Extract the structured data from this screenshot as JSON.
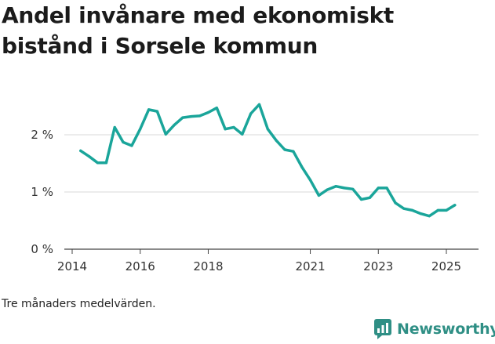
{
  "title": "Andel invånare med ekonomiskt bistånd i Sorsele kommun",
  "caption": "Tre månaders medelvärden.",
  "brand": {
    "name": "Newsworthy",
    "icon": "newsworthy-logo-icon",
    "color": "#2f8f85"
  },
  "chart_data": {
    "type": "line",
    "title": "Andel invånare med ekonomiskt bistånd i Sorsele kommun",
    "xlabel": "",
    "ylabel": "",
    "x_ticks": [
      {
        "value": 2014,
        "label": "2014"
      },
      {
        "value": 2016,
        "label": "2016"
      },
      {
        "value": 2018,
        "label": "2018"
      },
      {
        "value": 2021,
        "label": "2021"
      },
      {
        "value": 2023,
        "label": "2023"
      },
      {
        "value": 2025,
        "label": "2025"
      }
    ],
    "y_ticks": [
      {
        "value": 0,
        "label": "0 %"
      },
      {
        "value": 1,
        "label": "1 %"
      },
      {
        "value": 2,
        "label": "2 %"
      }
    ],
    "xlim": [
      2014,
      2025.5
    ],
    "ylim": [
      0,
      2.65
    ],
    "grid": "horizontal",
    "line_color": "#1aa59a",
    "series": [
      {
        "x": [
          2014.25,
          2014.5,
          2014.75,
          2015.0,
          2015.25,
          2015.5,
          2015.75,
          2016.0,
          2016.25,
          2016.5,
          2016.75,
          2017.0,
          2017.25,
          2017.5,
          2017.75,
          2018.0,
          2018.25,
          2018.5,
          2018.75,
          2019.0,
          2019.25,
          2019.5,
          2019.75,
          2020.0,
          2020.25,
          2020.5,
          2020.75,
          2021.0,
          2021.25,
          2021.5,
          2021.75,
          2022.0,
          2022.25,
          2022.5,
          2022.75,
          2023.0,
          2023.25,
          2023.5,
          2023.75,
          2024.0,
          2024.25,
          2024.5,
          2024.75,
          2025.0,
          2025.25
        ],
        "values": [
          1.72,
          1.62,
          1.51,
          1.51,
          2.13,
          1.87,
          1.81,
          2.1,
          2.44,
          2.41,
          2.01,
          2.17,
          2.3,
          2.32,
          2.33,
          2.39,
          2.47,
          2.1,
          2.13,
          2.01,
          2.37,
          2.53,
          2.1,
          1.9,
          1.74,
          1.71,
          1.44,
          1.21,
          0.94,
          1.04,
          1.1,
          1.07,
          1.05,
          0.87,
          0.9,
          1.07,
          1.07,
          0.81,
          0.71,
          0.68,
          0.62,
          0.58,
          0.68,
          0.68,
          0.77
        ]
      }
    ]
  }
}
